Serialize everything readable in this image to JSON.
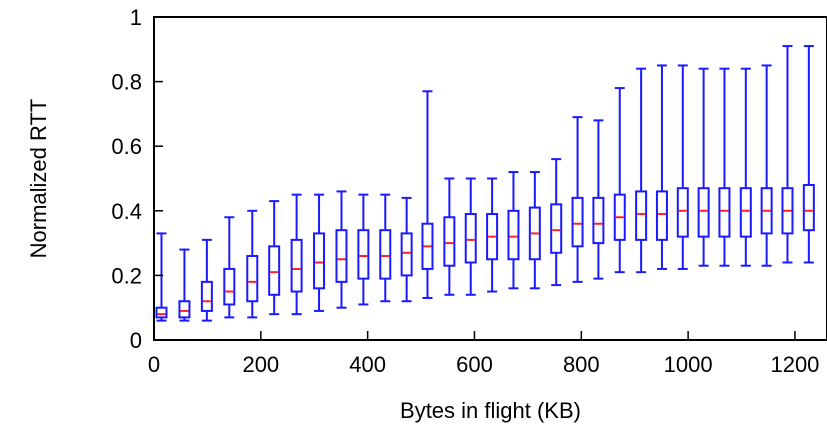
{
  "chart_data": {
    "type": "box",
    "title": "",
    "xlabel": "Bytes in flight (KB)",
    "ylabel": "Normalized RTT",
    "xlim": [
      0,
      1260
    ],
    "ylim": [
      0,
      1
    ],
    "xticks": [
      0,
      200,
      400,
      600,
      800,
      1000,
      1200
    ],
    "yticks": [
      0,
      0.2,
      0.4,
      0.6,
      0.8,
      1
    ],
    "xtick_labels": [
      "0",
      "200",
      "400",
      "600",
      "800",
      "1000",
      "1200"
    ],
    "ytick_labels": [
      "0",
      "0.2",
      "0.4",
      "0.6",
      "0.8",
      "1"
    ],
    "grid": false,
    "colors": {
      "box": "#1a1aff",
      "median": "#ff2020",
      "frame": "#000000"
    },
    "boxes": [
      {
        "x": 14,
        "min": 0.06,
        "q1": 0.07,
        "median": 0.08,
        "q3": 0.1,
        "max": 0.33
      },
      {
        "x": 57,
        "min": 0.06,
        "q1": 0.07,
        "median": 0.09,
        "q3": 0.12,
        "max": 0.28
      },
      {
        "x": 99,
        "min": 0.06,
        "q1": 0.09,
        "median": 0.12,
        "q3": 0.18,
        "max": 0.31
      },
      {
        "x": 141,
        "min": 0.07,
        "q1": 0.11,
        "median": 0.15,
        "q3": 0.22,
        "max": 0.38
      },
      {
        "x": 184,
        "min": 0.07,
        "q1": 0.12,
        "median": 0.18,
        "q3": 0.26,
        "max": 0.4
      },
      {
        "x": 225,
        "min": 0.08,
        "q1": 0.14,
        "median": 0.21,
        "q3": 0.29,
        "max": 0.43
      },
      {
        "x": 267,
        "min": 0.08,
        "q1": 0.15,
        "median": 0.22,
        "q3": 0.31,
        "max": 0.45
      },
      {
        "x": 309,
        "min": 0.09,
        "q1": 0.16,
        "median": 0.24,
        "q3": 0.33,
        "max": 0.45
      },
      {
        "x": 351,
        "min": 0.1,
        "q1": 0.18,
        "median": 0.25,
        "q3": 0.34,
        "max": 0.46
      },
      {
        "x": 392,
        "min": 0.11,
        "q1": 0.19,
        "median": 0.26,
        "q3": 0.34,
        "max": 0.45
      },
      {
        "x": 433,
        "min": 0.12,
        "q1": 0.19,
        "median": 0.26,
        "q3": 0.34,
        "max": 0.45
      },
      {
        "x": 473,
        "min": 0.12,
        "q1": 0.2,
        "median": 0.27,
        "q3": 0.33,
        "max": 0.44
      },
      {
        "x": 512,
        "min": 0.13,
        "q1": 0.22,
        "median": 0.29,
        "q3": 0.36,
        "max": 0.77
      },
      {
        "x": 553,
        "min": 0.14,
        "q1": 0.23,
        "median": 0.3,
        "q3": 0.38,
        "max": 0.5
      },
      {
        "x": 593,
        "min": 0.14,
        "q1": 0.24,
        "median": 0.31,
        "q3": 0.39,
        "max": 0.5
      },
      {
        "x": 633,
        "min": 0.15,
        "q1": 0.25,
        "median": 0.32,
        "q3": 0.39,
        "max": 0.5
      },
      {
        "x": 673,
        "min": 0.16,
        "q1": 0.25,
        "median": 0.32,
        "q3": 0.4,
        "max": 0.52
      },
      {
        "x": 713,
        "min": 0.16,
        "q1": 0.25,
        "median": 0.33,
        "q3": 0.41,
        "max": 0.52
      },
      {
        "x": 753,
        "min": 0.17,
        "q1": 0.27,
        "median": 0.34,
        "q3": 0.42,
        "max": 0.56
      },
      {
        "x": 793,
        "min": 0.18,
        "q1": 0.29,
        "median": 0.36,
        "q3": 0.44,
        "max": 0.69
      },
      {
        "x": 832,
        "min": 0.19,
        "q1": 0.3,
        "median": 0.36,
        "q3": 0.44,
        "max": 0.68
      },
      {
        "x": 872,
        "min": 0.21,
        "q1": 0.31,
        "median": 0.38,
        "q3": 0.45,
        "max": 0.78
      },
      {
        "x": 912,
        "min": 0.21,
        "q1": 0.31,
        "median": 0.39,
        "q3": 0.46,
        "max": 0.84
      },
      {
        "x": 951,
        "min": 0.22,
        "q1": 0.31,
        "median": 0.39,
        "q3": 0.46,
        "max": 0.85
      },
      {
        "x": 990,
        "min": 0.22,
        "q1": 0.32,
        "median": 0.4,
        "q3": 0.47,
        "max": 0.85
      },
      {
        "x": 1029,
        "min": 0.23,
        "q1": 0.32,
        "median": 0.4,
        "q3": 0.47,
        "max": 0.84
      },
      {
        "x": 1068,
        "min": 0.23,
        "q1": 0.32,
        "median": 0.4,
        "q3": 0.47,
        "max": 0.84
      },
      {
        "x": 1108,
        "min": 0.23,
        "q1": 0.32,
        "median": 0.4,
        "q3": 0.47,
        "max": 0.84
      },
      {
        "x": 1147,
        "min": 0.23,
        "q1": 0.33,
        "median": 0.4,
        "q3": 0.47,
        "max": 0.85
      },
      {
        "x": 1186,
        "min": 0.24,
        "q1": 0.33,
        "median": 0.4,
        "q3": 0.47,
        "max": 0.91
      },
      {
        "x": 1226,
        "min": 0.24,
        "q1": 0.34,
        "median": 0.4,
        "q3": 0.48,
        "max": 0.91
      }
    ]
  }
}
